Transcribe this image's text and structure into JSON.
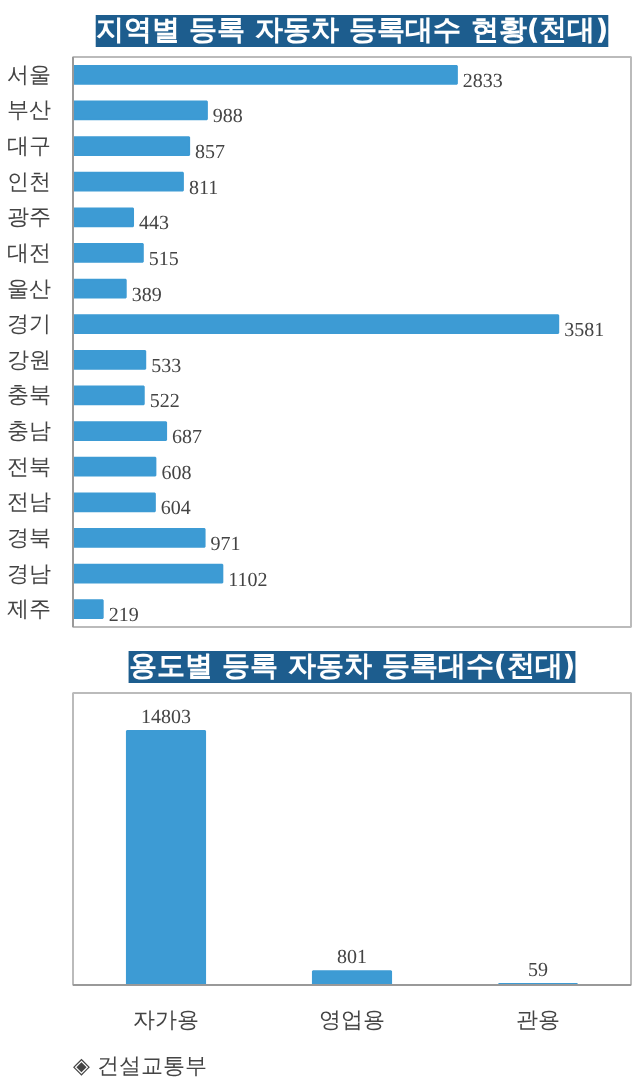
{
  "chart_data": [
    {
      "type": "bar",
      "orientation": "horizontal",
      "title": "지역별 등록 자동차 등록대수 현황(천대)",
      "categories": [
        "서울",
        "부산",
        "대구",
        "인천",
        "광주",
        "대전",
        "울산",
        "경기",
        "강원",
        "충북",
        "충남",
        "전북",
        "전남",
        "경북",
        "경남",
        "제주"
      ],
      "values": [
        2833,
        988,
        857,
        811,
        443,
        515,
        389,
        3581,
        533,
        522,
        687,
        608,
        604,
        971,
        1102,
        219
      ],
      "color": "#3d9bd4",
      "data_labels": true,
      "tick_labels": "y"
    },
    {
      "type": "bar",
      "title": "용도별 등록 자동차 등록대수(천대)",
      "categories": [
        "자가용",
        "영업용",
        "관용"
      ],
      "values": [
        14803,
        801,
        59
      ],
      "color": "#3d9bd4",
      "data_labels": true,
      "tick_labels": "x",
      "annotations": [
        "◈ 건설교통부"
      ]
    }
  ]
}
